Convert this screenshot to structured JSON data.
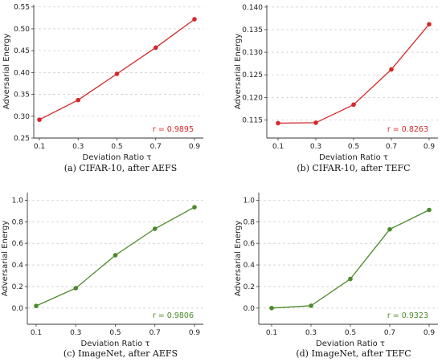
{
  "chart_data": [
    {
      "type": "line",
      "caption": "(a) CIFAR-10, after AEFS",
      "xlabel": "Deviation Ratio τ",
      "ylabel": "Adversarial Energy",
      "x": [
        0.1,
        0.3,
        0.5,
        0.7,
        0.9
      ],
      "x_ticks": [
        "0.1",
        "0.3",
        "0.5",
        "0.7",
        "0.9"
      ],
      "y_ticks": [
        "0.25",
        "0.30",
        "0.35",
        "0.40",
        "0.45",
        "0.50",
        "0.55"
      ],
      "ylim": [
        0.25,
        0.555
      ],
      "series": [
        {
          "values": [
            0.292,
            0.337,
            0.397,
            0.457,
            0.522
          ]
        }
      ],
      "annotation": "r = 0.9895",
      "color": "#d62728",
      "grid": true
    },
    {
      "type": "line",
      "caption": "(b) CIFAR-10, after TEFC",
      "xlabel": "Deviation Ratio τ",
      "ylabel": "Adversarial Energy",
      "x": [
        0.1,
        0.3,
        0.5,
        0.7,
        0.9
      ],
      "x_ticks": [
        "0.1",
        "0.3",
        "0.5",
        "0.7",
        "0.9"
      ],
      "y_ticks": [
        "0.115",
        "0.120",
        "0.125",
        "0.130",
        "0.135",
        "0.140"
      ],
      "ylim": [
        0.111,
        0.1405
      ],
      "series": [
        {
          "values": [
            0.1143,
            0.1144,
            0.1184,
            0.1262,
            0.1362
          ]
        }
      ],
      "annotation": "r = 0.8263",
      "color": "#d62728",
      "grid": true
    },
    {
      "type": "line",
      "caption": "(c) ImageNet, after AEFS",
      "xlabel": "Deviation Ratio τ",
      "ylabel": "Adversarial Energy",
      "x": [
        0.1,
        0.3,
        0.5,
        0.7,
        0.9
      ],
      "x_ticks": [
        "0.1",
        "0.3",
        "0.5",
        "0.7",
        "0.9"
      ],
      "y_ticks": [
        "0.0",
        "0.2",
        "0.4",
        "0.6",
        "0.8",
        "1.0"
      ],
      "ylim": [
        -0.15,
        1.07
      ],
      "series": [
        {
          "values": [
            0.02,
            0.185,
            0.49,
            0.735,
            0.935
          ]
        }
      ],
      "annotation": "r = 0.9806",
      "color": "#4a8a2a",
      "grid": true
    },
    {
      "type": "line",
      "caption": "(d) ImageNet, after TEFC",
      "xlabel": "Deviation Ratio τ",
      "ylabel": "Adversarial Energy",
      "x": [
        0.1,
        0.3,
        0.5,
        0.7,
        0.9
      ],
      "x_ticks": [
        "0.1",
        "0.3",
        "0.5",
        "0.7",
        "0.9"
      ],
      "y_ticks": [
        "0.0",
        "0.2",
        "0.4",
        "0.6",
        "0.8",
        "1.0"
      ],
      "ylim": [
        -0.15,
        1.07
      ],
      "series": [
        {
          "values": [
            0.0,
            0.022,
            0.27,
            0.73,
            0.91
          ]
        }
      ],
      "annotation": "r = 0.9323",
      "color": "#4a8a2a",
      "grid": true
    }
  ]
}
